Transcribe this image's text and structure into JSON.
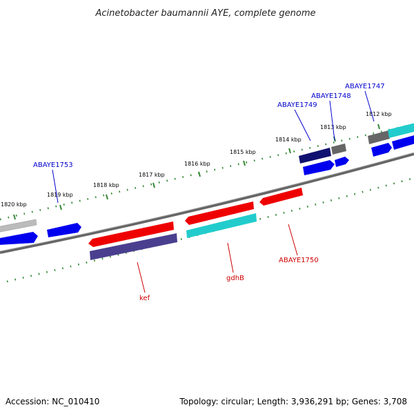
{
  "title": "Acinetobacter baumannii AYE, complete genome",
  "footer": {
    "accession": "Accession: NC_010410",
    "topology": "Topology: circular; Length: 3,936,291 bp; Genes: 3,708"
  },
  "scale_labels": [
    "1820 kbp",
    "1819 kbp",
    "1818 kbp",
    "1817 kbp",
    "1816 kbp",
    "1815 kbp",
    "1814 kbp",
    "1813 kbp",
    "1812 kbp"
  ],
  "gene_labels": {
    "ABAYE1753": "ABAYE1753",
    "ABAYE1749": "ABAYE1749",
    "ABAYE1748": "ABAYE1748",
    "ABAYE1747": "ABAYE1747",
    "kef": "kef",
    "gdhB": "gdhB",
    "ABAYE1750": "ABAYE1750"
  },
  "colors": {
    "forward_label": "#0000cc",
    "reverse_label": "#cc0000",
    "red": "#ee0000",
    "blue": "#0000ee",
    "cyan": "#22cccc",
    "navy": "#101070",
    "slate": "#4a3f8f",
    "gray": "#777777",
    "lightgray": "#bbbbbb",
    "backbone": "#888888",
    "ticks": "#338833"
  }
}
